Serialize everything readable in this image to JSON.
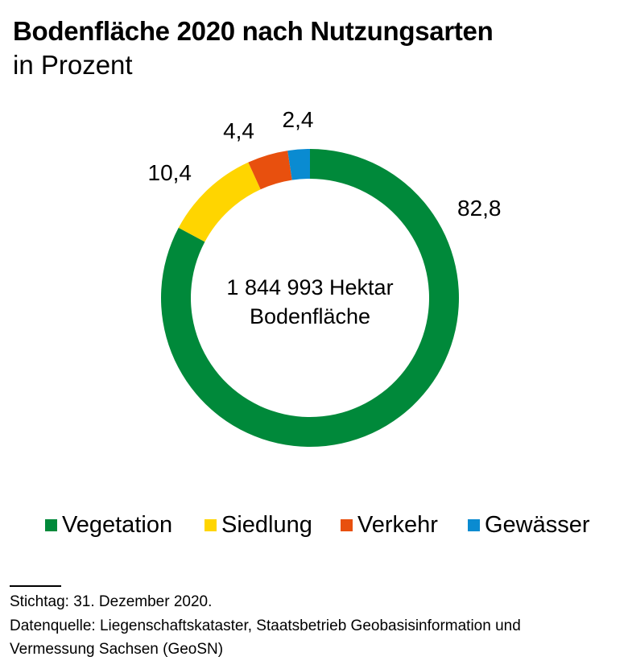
{
  "header": {
    "title": "Bodenfläche 2020 nach Nutzungsarten",
    "subtitle": "in Prozent"
  },
  "chart_data": {
    "type": "pie",
    "variant": "donut",
    "categories": [
      "Vegetation",
      "Siedlung",
      "Verkehr",
      "Gewässer"
    ],
    "values": [
      82.8,
      10.4,
      4.4,
      2.4
    ],
    "value_labels": [
      "82,8",
      "10,4",
      "4,4",
      "2,4"
    ],
    "colors": [
      "#00893a",
      "#ffd500",
      "#e8500e",
      "#0a8bd1"
    ],
    "center_label": [
      "1 844 993 Hektar",
      "Bodenfläche"
    ],
    "legend_position": "bottom",
    "start_angle_deg": 0,
    "direction": "clockwise"
  },
  "footer": {
    "stichtag": "Stichtag: 31. Dezember 2020.",
    "quelle_line1": "Datenquelle: Liegenschaftskataster, Staatsbetrieb Geobasisinformation und",
    "quelle_line2": "Vermessung Sachsen (GeoSN)"
  }
}
